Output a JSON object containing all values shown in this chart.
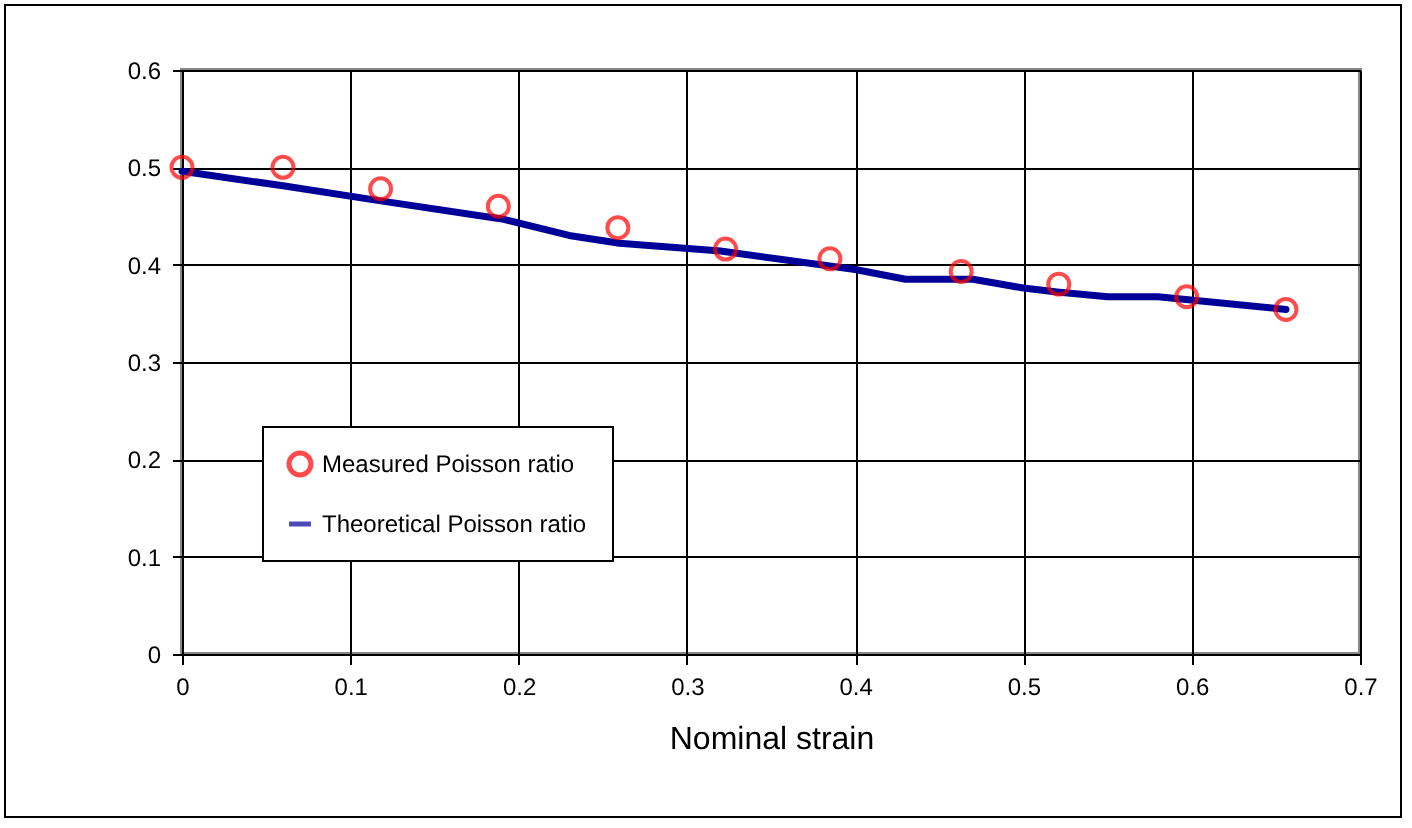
{
  "chart_data": {
    "type": "scatter",
    "xlabel": "Nominal strain",
    "xlim": [
      0,
      0.7
    ],
    "xticks": [
      0,
      0.1,
      0.2,
      0.3,
      0.4,
      0.5,
      0.6,
      0.7
    ],
    "ylim": [
      0,
      0.6
    ],
    "yticks": [
      0,
      0.1,
      0.2,
      0.3,
      0.4,
      0.5,
      0.6
    ],
    "grid": true,
    "legend": "bottom left",
    "series": [
      {
        "name": "Measured Poisson ratio",
        "marker": "circle",
        "color": "#ff0000",
        "x": [
          0,
          0.06,
          0.118,
          0.188,
          0.259,
          0.323,
          0.385,
          0.463,
          0.521,
          0.597,
          0.656
        ],
        "values": [
          0.5,
          0.5,
          0.478,
          0.46,
          0.438,
          0.416,
          0.406,
          0.393,
          0.38,
          0.367,
          0.354
        ]
      },
      {
        "name": "Theoretical Poisson ratio",
        "type": "line",
        "marker": "none",
        "line_style": "solid",
        "color": "#000099",
        "x": [
          0,
          0.06,
          0.12,
          0.19,
          0.23,
          0.26,
          0.32,
          0.4,
          0.43,
          0.47,
          0.5,
          0.52,
          0.55,
          0.58,
          0.61,
          0.656
        ],
        "values": [
          0.496,
          0.481,
          0.465,
          0.447,
          0.43,
          0.422,
          0.414,
          0.395,
          0.385,
          0.385,
          0.376,
          0.372,
          0.367,
          0.367,
          0.362,
          0.354
        ]
      }
    ]
  }
}
